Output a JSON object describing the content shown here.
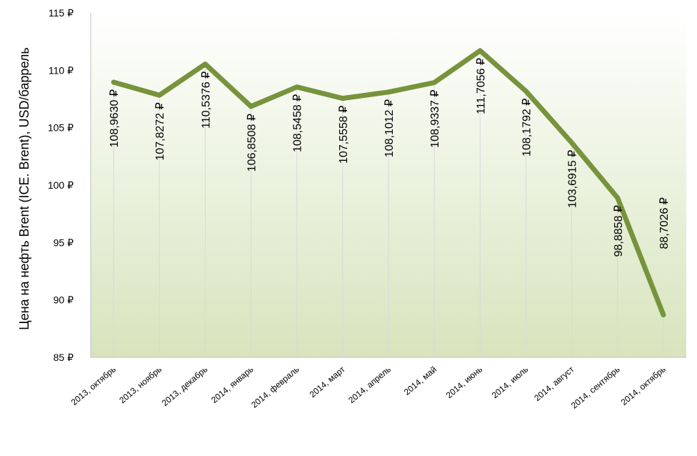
{
  "chart_data": {
    "type": "line",
    "title": "",
    "xlabel": "",
    "ylabel": "Цена на нефть Brent (ICE. Brent), USD/баррель",
    "ylim": [
      85,
      115
    ],
    "yticks": [
      85,
      90,
      95,
      100,
      105,
      110,
      115
    ],
    "ytick_labels": [
      "85 ₽",
      "90 ₽",
      "95 ₽",
      "100 ₽",
      "105 ₽",
      "110 ₽",
      "115 ₽"
    ],
    "grid": false,
    "legend": "none",
    "categories": [
      "2013,  октябрь",
      "2013,  ноябрь",
      "2013,  декабрь",
      "2014,  январь",
      "2014,  февраль",
      "2014,  март",
      "2014,  апрель",
      "2014,  май",
      "2014,  июнь",
      "2014,  июль",
      "2014,  август",
      "2014,  сентябрь",
      "2014,  октябрь"
    ],
    "series": [
      {
        "values": [
          108.963,
          107.8272,
          110.5376,
          106.8508,
          108.5458,
          107.5558,
          108.1012,
          108.9337,
          111.7056,
          108.1792,
          103.6915,
          98.8858,
          88.7026
        ]
      }
    ],
    "data_labels": [
      "108,9630 ₽",
      "107,8272 ₽",
      "110,5376 ₽",
      "106,8508 ₽",
      "108,5458 ₽",
      "107,5558 ₽",
      "108,1012 ₽",
      "108,9337 ₽",
      "111,7056 ₽",
      "108,1792 ₽",
      "103,6915 ₽",
      "98,8858 ₽",
      "88,7026 ₽"
    ],
    "colors": {
      "line": "#77933c",
      "plot_bg_top": "#ffffff",
      "plot_bg_bottom": "#d7e4bd",
      "drop_line": "#d9d9d9",
      "axis": "#bfbfbf"
    }
  }
}
